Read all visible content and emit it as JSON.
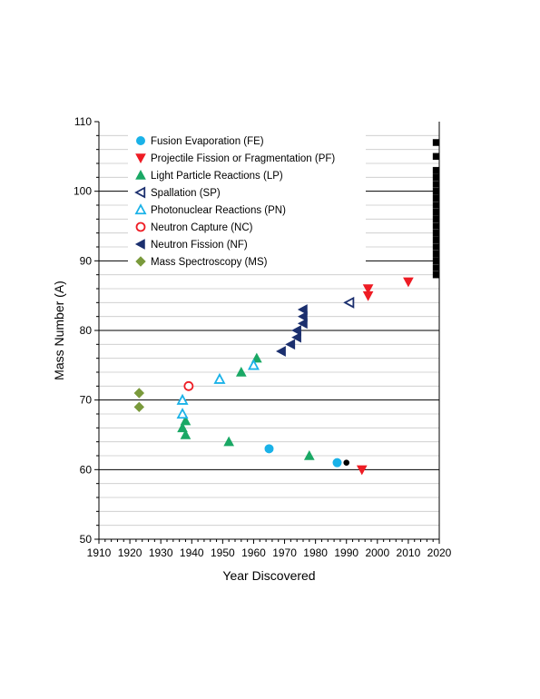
{
  "chart_data": {
    "type": "scatter",
    "xlabel": "Year Discovered",
    "ylabel": "Mass Number (A)",
    "xlim": [
      1910,
      2020
    ],
    "ylim": [
      50,
      110
    ],
    "x_ticks": [
      "1910",
      "1920",
      "1930",
      "1940",
      "1950",
      "1960",
      "1970",
      "1980",
      "1990",
      "2000",
      "2010",
      "2020"
    ],
    "y_ticks": [
      "50",
      "60",
      "70",
      "80",
      "90",
      "100",
      "110"
    ],
    "grid": "horizontal lines every 2 mass units, heavier every 10",
    "legend_position": "top-left",
    "series": [
      {
        "name": "Fusion Evaporation (FE)",
        "marker": "circle",
        "filled": true,
        "color": "#1ab2e8",
        "points": [
          [
            1965,
            63
          ],
          [
            1987,
            61
          ]
        ]
      },
      {
        "name": "Projectile Fission or Fragmentation (PF)",
        "marker": "triangle-down",
        "filled": true,
        "color": "#ee1c24",
        "points": [
          [
            1995,
            60
          ],
          [
            1997,
            85
          ],
          [
            1997,
            86
          ],
          [
            2010,
            87
          ]
        ]
      },
      {
        "name": "Light Particle Reactions (LP)",
        "marker": "triangle-up",
        "filled": true,
        "color": "#1aa865",
        "points": [
          [
            1937,
            66
          ],
          [
            1938,
            65
          ],
          [
            1938,
            67
          ],
          [
            1952,
            64
          ],
          [
            1956,
            74
          ],
          [
            1961,
            76
          ],
          [
            1978,
            62
          ]
        ]
      },
      {
        "name": "Spallation (SP)",
        "marker": "triangle-left",
        "filled": false,
        "color": "#1b2f6e",
        "points": [
          [
            1991,
            84
          ]
        ]
      },
      {
        "name": "Photonuclear Reactions (PN)",
        "marker": "triangle-up",
        "filled": false,
        "color": "#1ab2e8",
        "points": [
          [
            1937,
            68
          ],
          [
            1937,
            70
          ],
          [
            1949,
            73
          ],
          [
            1960,
            75
          ]
        ]
      },
      {
        "name": "Neutron Capture (NC)",
        "marker": "circle",
        "filled": false,
        "color": "#ee1c24",
        "points": [
          [
            1939,
            72
          ]
        ]
      },
      {
        "name": "Neutron Fission (NF)",
        "marker": "triangle-left",
        "filled": true,
        "color": "#1b2f6e",
        "points": [
          [
            1969,
            77
          ],
          [
            1972,
            78
          ],
          [
            1974,
            79
          ],
          [
            1974,
            80
          ],
          [
            1976,
            81
          ],
          [
            1976,
            82
          ],
          [
            1976,
            83
          ]
        ]
      },
      {
        "name": "Mass Spectroscopy (MS)",
        "marker": "diamond",
        "filled": true,
        "color": "#7a9a3c",
        "points": [
          [
            1923,
            69
          ],
          [
            1923,
            71
          ]
        ]
      }
    ],
    "unnamed_series": [
      {
        "marker": "circle-small",
        "filled": true,
        "color": "#000000",
        "points": [
          [
            1990,
            61
          ]
        ]
      },
      {
        "marker": "square",
        "filled": true,
        "color": "#000000",
        "points": [
          [
            2019,
            88
          ],
          [
            2019,
            89
          ],
          [
            2019,
            90
          ],
          [
            2019,
            91
          ],
          [
            2019,
            92
          ],
          [
            2019,
            93
          ],
          [
            2019,
            94
          ],
          [
            2019,
            95
          ],
          [
            2019,
            96
          ],
          [
            2019,
            97
          ],
          [
            2019,
            98
          ],
          [
            2019,
            99
          ],
          [
            2019,
            100
          ],
          [
            2019,
            101
          ],
          [
            2019,
            102
          ],
          [
            2019,
            103
          ],
          [
            2019,
            105
          ],
          [
            2019,
            107
          ]
        ]
      }
    ]
  }
}
